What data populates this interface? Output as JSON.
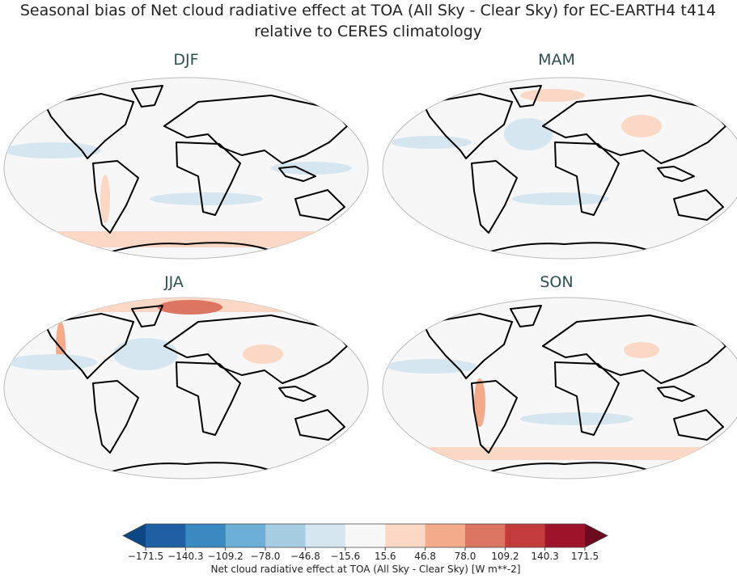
{
  "title": "Seasonal bias of Net cloud radiative effect at TOA (All Sky - Clear Sky) for EC-EARTH4 t414",
  "subtitle": "relative to CERES climatology",
  "panels": [
    {
      "label": "DJF"
    },
    {
      "label": "MAM"
    },
    {
      "label": "JJA"
    },
    {
      "label": "SON"
    }
  ],
  "colorbar": {
    "label": "Net cloud radiative effect at TOA (All Sky - Clear Sky) [W m**-2]",
    "clim": [
      -171.5,
      171.5
    ],
    "ticks": [
      {
        "value": -171.5,
        "label": "−171.5"
      },
      {
        "value": -140.3,
        "label": "−140.3"
      },
      {
        "value": -109.2,
        "label": "−109.2"
      },
      {
        "value": -78.0,
        "label": "−78.0"
      },
      {
        "value": -46.8,
        "label": "−46.8"
      },
      {
        "value": -15.6,
        "label": "−15.6"
      },
      {
        "value": 15.6,
        "label": "15.6"
      },
      {
        "value": 46.8,
        "label": "46.8"
      },
      {
        "value": 78.0,
        "label": "78.0"
      },
      {
        "value": 109.2,
        "label": "109.2"
      },
      {
        "value": 140.3,
        "label": "140.3"
      },
      {
        "value": 171.5,
        "label": "171.5"
      }
    ],
    "colors": [
      "#1f5fa3",
      "#3a89c1",
      "#6baed6",
      "#a7cde3",
      "#d5e6f0",
      "#f7f7f7",
      "#fbd8c6",
      "#f3ab8b",
      "#dc7561",
      "#c43b3c",
      "#a0142b"
    ],
    "extend_colors": [
      "#0d4784",
      "#6c0a1f"
    ]
  }
}
